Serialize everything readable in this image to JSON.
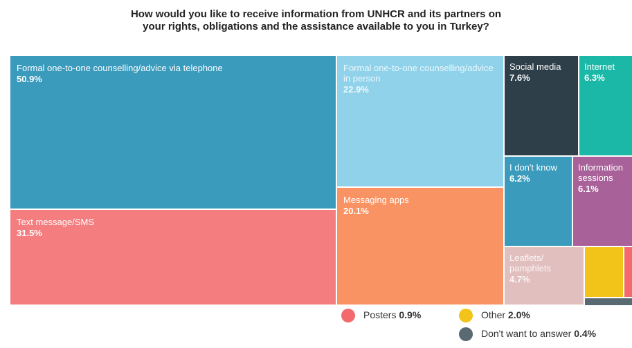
{
  "chart_data": {
    "type": "treemap",
    "title_lines": [
      "How would you like to receive information from UNHCR and its partners on",
      "your rights, obligations and the assistance available to you in Turkey?"
    ],
    "items": [
      {
        "id": "phone",
        "label": "Formal one-to-one counselling/advice via telephone",
        "value": 50.9,
        "value_label": "50.9%",
        "color": "#3a9bbd"
      },
      {
        "id": "sms",
        "label": "Text message/SMS",
        "value": 31.5,
        "value_label": "31.5%",
        "color": "#f37d7f"
      },
      {
        "id": "inperson",
        "label": "Formal one-to-one counselling/advice in person",
        "value": 22.9,
        "value_label": "22.9%",
        "color": "#8fd2ea"
      },
      {
        "id": "messaging",
        "label": "Messaging apps",
        "value": 20.1,
        "value_label": "20.1%",
        "color": "#f99363"
      },
      {
        "id": "social",
        "label": "Social media",
        "value": 7.6,
        "value_label": "7.6%",
        "color": "#2f3f4a"
      },
      {
        "id": "internet",
        "label": "Internet",
        "value": 6.3,
        "value_label": "6.3%",
        "color": "#1bb8a7"
      },
      {
        "id": "dontknow",
        "label": "I don't know",
        "value": 6.2,
        "value_label": "6.2%",
        "color": "#3a9bbd"
      },
      {
        "id": "sessions",
        "label": "Information sessions",
        "value": 6.1,
        "value_label": "6.1%",
        "color": "#a86199"
      },
      {
        "id": "leaflets",
        "label": "Leaflets/ pamphlets",
        "value": 4.7,
        "value_label": "4.7%",
        "color": "#e2bfbf"
      },
      {
        "id": "other",
        "label": "Other",
        "value": 2.0,
        "value_label": "2.0%",
        "color": "#f2c318"
      },
      {
        "id": "posters",
        "label": "Posters",
        "value": 0.9,
        "value_label": "0.9%",
        "color": "#f36a6c"
      },
      {
        "id": "nowant",
        "label": "Don't want to answer",
        "value": 0.4,
        "value_label": "0.4%",
        "color": "#5a6a72"
      }
    ],
    "legend": [
      {
        "item": "posters",
        "label": "Posters",
        "value_label": "0.9%"
      },
      {
        "item": "other",
        "label": "Other",
        "value_label": "2.0%"
      },
      {
        "item": "nowant",
        "label": "Don't want to answer",
        "value_label": "0.4%"
      }
    ]
  }
}
